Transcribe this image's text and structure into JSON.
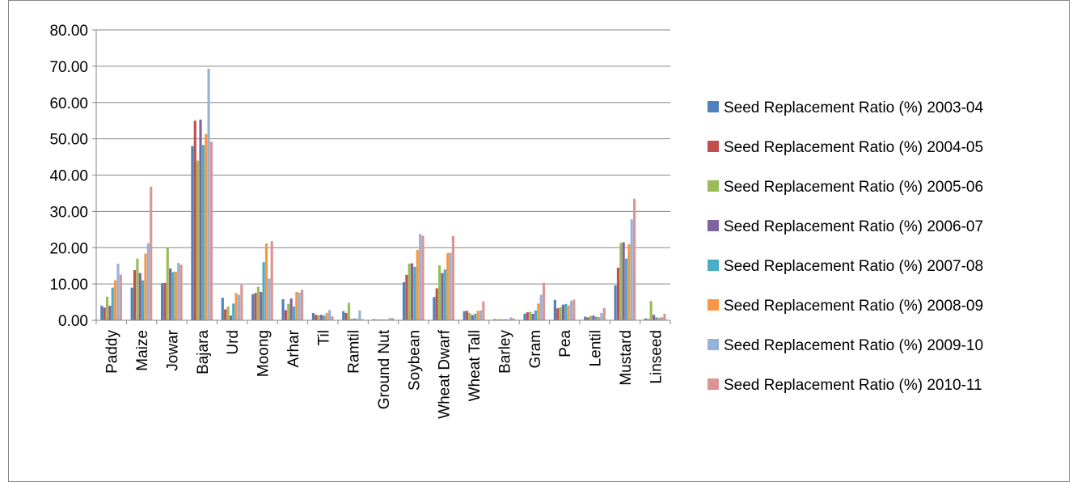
{
  "chart_data": {
    "type": "bar",
    "title": "",
    "xlabel": "",
    "ylabel": "",
    "ylim": [
      0,
      80
    ],
    "yticks": [
      "0.00",
      "10.00",
      "20.00",
      "30.00",
      "40.00",
      "50.00",
      "60.00",
      "70.00",
      "80.00"
    ],
    "grid": true,
    "legend_position": "right",
    "categories": [
      "Paddy",
      "Maize",
      "Jowar",
      "Bajara",
      "Urd",
      "Moong",
      "Arhar",
      "Til",
      "Ramtil",
      "Ground Nut",
      "Soybean",
      "Wheat Dwarf",
      "Wheat Tall",
      "Barley",
      "Gram",
      "Pea",
      "Lentil",
      "Mustard",
      "Linseed"
    ],
    "series": [
      {
        "name": "Seed Replacement Ratio (%) 2003-04",
        "color": "#4F81BD",
        "values": [
          4.0,
          9.0,
          10.2,
          48.0,
          6.2,
          7.2,
          5.8,
          2.0,
          2.5,
          0.3,
          10.5,
          6.4,
          2.5,
          0.3,
          1.8,
          5.6,
          1.0,
          9.6,
          0.5
        ]
      },
      {
        "name": "Seed Replacement Ratio (%) 2004-05",
        "color": "#C0504D",
        "values": [
          3.5,
          13.8,
          10.3,
          55.0,
          3.0,
          7.5,
          2.8,
          1.5,
          2.0,
          0.2,
          12.5,
          8.8,
          2.6,
          0.2,
          2.2,
          3.3,
          0.8,
          14.5,
          0.3
        ]
      },
      {
        "name": "Seed Replacement Ratio (%) 2005-06",
        "color": "#9BBB59",
        "values": [
          6.5,
          17.0,
          20.0,
          44.0,
          3.8,
          9.2,
          4.5,
          1.4,
          4.8,
          0.2,
          15.6,
          15.1,
          2.0,
          0.3,
          2.3,
          3.6,
          1.2,
          21.3,
          5.3
        ]
      },
      {
        "name": "Seed Replacement Ratio (%) 2006-07",
        "color": "#8064A2",
        "values": [
          4.0,
          13.0,
          14.3,
          55.3,
          1.3,
          7.8,
          6.0,
          1.5,
          0.3,
          0.2,
          15.7,
          13.0,
          1.4,
          0.2,
          1.8,
          4.3,
          1.3,
          21.5,
          1.5
        ]
      },
      {
        "name": "Seed Replacement Ratio (%) 2007-08",
        "color": "#4BACC6",
        "values": [
          9.0,
          11.0,
          13.3,
          48.3,
          4.6,
          16.0,
          3.8,
          1.3,
          0.5,
          0.2,
          14.7,
          14.0,
          1.8,
          0.3,
          2.7,
          4.5,
          1.0,
          17.0,
          0.8
        ]
      },
      {
        "name": "Seed Replacement Ratio (%) 2008-09",
        "color": "#F79646",
        "values": [
          11.0,
          18.4,
          13.4,
          51.3,
          7.5,
          21.2,
          7.8,
          2.0,
          0.4,
          0.2,
          19.4,
          18.5,
          2.6,
          0.2,
          4.6,
          4.1,
          0.9,
          21.0,
          0.7
        ]
      },
      {
        "name": "Seed Replacement Ratio (%) 2009-10",
        "color": "#95B3D7",
        "values": [
          15.6,
          21.2,
          15.8,
          69.3,
          7.0,
          11.5,
          7.6,
          2.8,
          2.7,
          0.6,
          23.8,
          18.6,
          2.7,
          0.8,
          7.0,
          5.4,
          2.0,
          27.8,
          0.9
        ]
      },
      {
        "name": "Seed Replacement Ratio (%) 2010-11",
        "color": "#D99694",
        "values": [
          12.6,
          36.8,
          15.3,
          49.2,
          9.8,
          21.8,
          8.4,
          1.1,
          0.3,
          0.6,
          23.3,
          23.2,
          5.2,
          0.5,
          10.3,
          5.7,
          3.4,
          33.5,
          1.8
        ]
      }
    ]
  }
}
